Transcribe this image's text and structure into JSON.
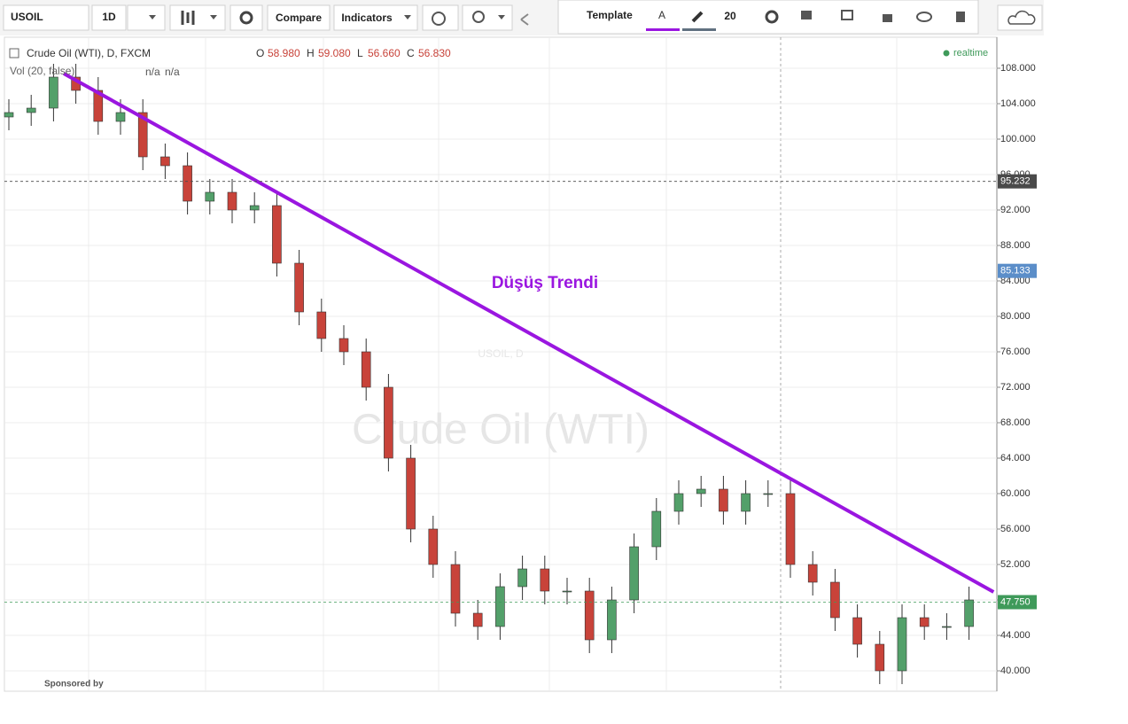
{
  "toolbar": {
    "symbol": "USOIL",
    "interval": "1D",
    "compare": "Compare",
    "indicators": "Indicators",
    "template": "Template",
    "line_width": "20"
  },
  "legend": {
    "title": "Crude Oil (WTI), D, FXCM",
    "o_label": "O",
    "o": "58.980",
    "h_label": "H",
    "h": "59.080",
    "l_label": "L",
    "l": "56.660",
    "c_label": "C",
    "c": "56.830",
    "vol": "Vol (20, false)",
    "vol_a": "n/a",
    "vol_b": "n/a",
    "realtime": "realtime"
  },
  "watermark": {
    "main": "USOIL, D",
    "sub": "Crude Oil (WTI)"
  },
  "sponsor": "Sponsored by",
  "chart_data": {
    "type": "candlestick",
    "open": [
      102.5,
      103,
      103.5,
      107,
      105.5,
      102,
      103,
      98,
      97,
      93,
      94,
      92,
      92.5,
      86,
      80.5,
      77.5,
      76,
      72,
      64,
      56,
      52,
      46.5,
      45,
      49.5,
      51.5,
      49,
      49,
      43.5,
      48,
      54,
      58,
      60,
      60.5,
      58,
      60,
      60,
      52,
      50,
      46,
      43,
      40,
      46,
      45,
      45
    ],
    "high": [
      104.5,
      105,
      108.5,
      108.5,
      107,
      104.5,
      104.5,
      99.5,
      98.5,
      95.5,
      95.5,
      94,
      94,
      87.5,
      82,
      79,
      77.5,
      73.5,
      65.5,
      57.5,
      53.5,
      48,
      51,
      53,
      53,
      50.5,
      50.5,
      49.5,
      55.5,
      59.5,
      61.5,
      62,
      62,
      61.5,
      61.5,
      61.5,
      53.5,
      51.5,
      47.5,
      44.5,
      47.5,
      47.5,
      46.5,
      49.5
    ],
    "low": [
      101,
      101.5,
      102,
      104,
      100.5,
      100.5,
      96.5,
      95.5,
      91.5,
      91.5,
      90.5,
      90.5,
      84.5,
      79,
      76,
      74.5,
      70.5,
      62.5,
      54.5,
      50.5,
      45,
      43.5,
      43.5,
      48,
      47.5,
      47.5,
      42,
      42,
      46.5,
      52.5,
      56.5,
      58.5,
      56.5,
      56.5,
      58.5,
      50.5,
      48.5,
      44.5,
      41.5,
      38.5,
      38.5,
      43.5,
      43.5,
      43.5
    ],
    "close": [
      103,
      103.5,
      107,
      105.5,
      102,
      103,
      98,
      97,
      93,
      94,
      92,
      92.5,
      86,
      80.5,
      77.5,
      76,
      72,
      64,
      56,
      52,
      46.5,
      45,
      49.5,
      51.5,
      49,
      49,
      43.5,
      48,
      54,
      58,
      60,
      60.5,
      58,
      60,
      60,
      52,
      50,
      46,
      43,
      40,
      46,
      45,
      45,
      48
    ],
    "up_color": "#53a06a",
    "down_color": "#c8433a",
    "ylim": [
      37.7,
      111.5
    ],
    "yticks": [
      {
        "value": 40,
        "label": "40.000"
      },
      {
        "value": 44,
        "label": "44.000"
      },
      {
        "value": 48,
        "label": "48.000"
      },
      {
        "value": 52,
        "label": "52.000"
      },
      {
        "value": 56,
        "label": "56.000"
      },
      {
        "value": 60,
        "label": "60.000"
      },
      {
        "value": 64,
        "label": "64.000"
      },
      {
        "value": 68,
        "label": "68.000"
      },
      {
        "value": 72,
        "label": "72.000"
      },
      {
        "value": 76,
        "label": "76.000"
      },
      {
        "value": 80,
        "label": "80.000"
      },
      {
        "value": 84,
        "label": "84.000"
      },
      {
        "value": 88,
        "label": "88.000"
      },
      {
        "value": 92,
        "label": "92.000"
      },
      {
        "value": 96,
        "label": "96.000"
      },
      {
        "value": 100,
        "label": "100.000"
      },
      {
        "value": 104,
        "label": "104.000"
      },
      {
        "value": 108,
        "label": "108.000"
      }
    ],
    "grid": true,
    "price_lines": [
      {
        "value": 95.232,
        "label": "95.232",
        "color": "#4a4a4a",
        "line": true
      },
      {
        "value": 85.133,
        "label": "85.133",
        "color": "#5b8ec9",
        "line": false
      },
      {
        "value": 47.75,
        "label": "47.750",
        "color": "#3f9a5a",
        "line": true
      }
    ],
    "trendline": {
      "x": [
        2.46,
        44.1
      ],
      "y": [
        107.4,
        48.9
      ],
      "color": "#9a16e0"
    },
    "annotation": "Düşüş Trendi"
  }
}
